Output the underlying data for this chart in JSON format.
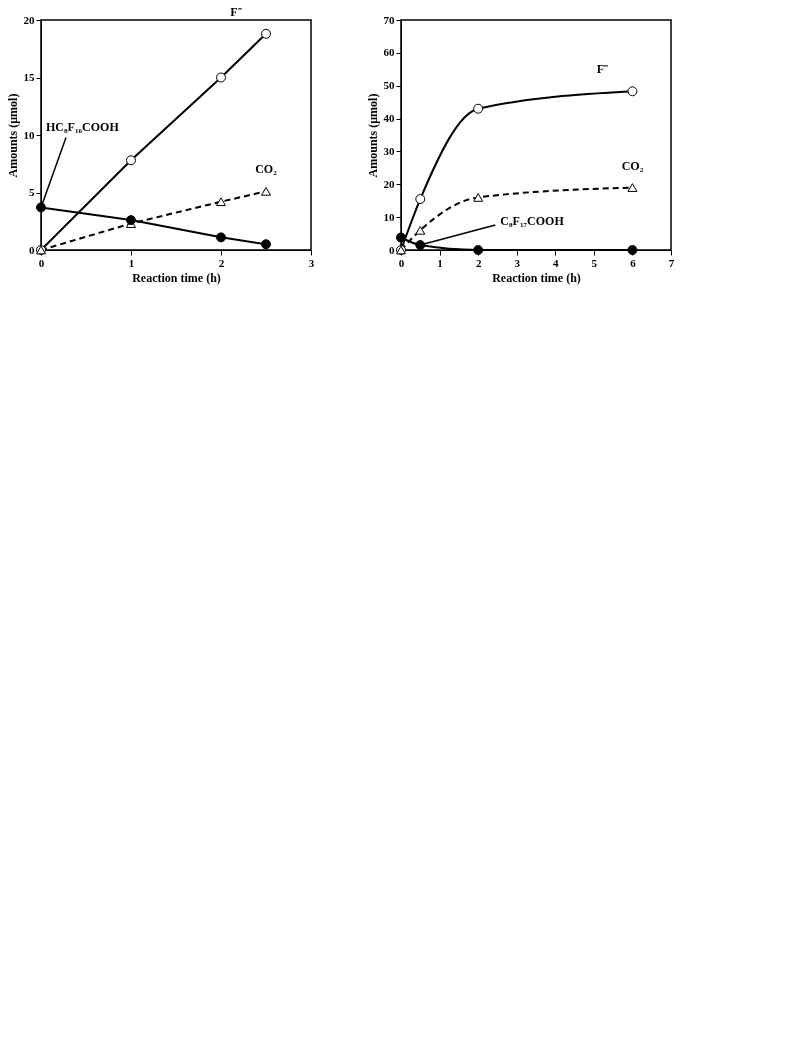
{
  "chart_data": [
    {
      "type": "line",
      "xlabel": "Reaction time (h)",
      "ylabel": "Amounts (μmol)",
      "x": [
        0,
        1,
        2,
        2.5
      ],
      "xlim": [
        0,
        3
      ],
      "xticks": [
        0,
        1,
        2,
        3
      ],
      "ylim": [
        0,
        20
      ],
      "yticks": [
        0,
        5,
        10,
        15,
        20
      ],
      "series": [
        {
          "name": "F⁻",
          "color": "#000000",
          "values": [
            0,
            7.8,
            15,
            18.8
          ],
          "marker": "circle",
          "line_style": "solid"
        },
        {
          "name": "CO₂",
          "color": "#000000",
          "values": [
            0,
            2.3,
            4.2,
            5.1
          ],
          "marker": "triangle",
          "line_style": "dashed"
        },
        {
          "color": "#000000",
          "values": [
            3.7,
            2.6,
            1.1,
            0.5
          ],
          "marker": "circle",
          "line_style": "solid"
        }
      ],
      "annotations": [
        {
          "text": "HC₈F₁₆COOH",
          "x": 0,
          "y": 3.7
        }
      ]
    },
    {
      "type": "line",
      "xlabel": "Reaction time (h)",
      "ylabel": "Amounts (μmol)",
      "x": [
        0,
        0.5,
        2,
        6
      ],
      "xlim": [
        0,
        7
      ],
      "xticks": [
        0,
        1,
        2,
        3,
        4,
        5,
        6,
        7
      ],
      "ylim": [
        0,
        70
      ],
      "yticks": [
        0,
        10,
        20,
        30,
        40,
        50,
        60,
        70
      ],
      "series": [
        {
          "name": "F⁻",
          "color": "#000000",
          "values": [
            0,
            15.5,
            43,
            48.3
          ],
          "marker": "circle",
          "line_style": "solid"
        },
        {
          "name": "CO₂",
          "color": "#000000",
          "values": [
            0,
            6,
            16,
            19
          ],
          "marker": "triangle",
          "line_style": "dashed"
        },
        {
          "color": "#000000",
          "values": [
            3.8,
            1.5,
            0,
            0
          ],
          "marker": "circle",
          "line_style": "solid"
        }
      ],
      "annotations": [
        {
          "text": "C₈F₁₇COOH",
          "x": 0.5,
          "y": 1.5
        }
      ]
    }
  ]
}
